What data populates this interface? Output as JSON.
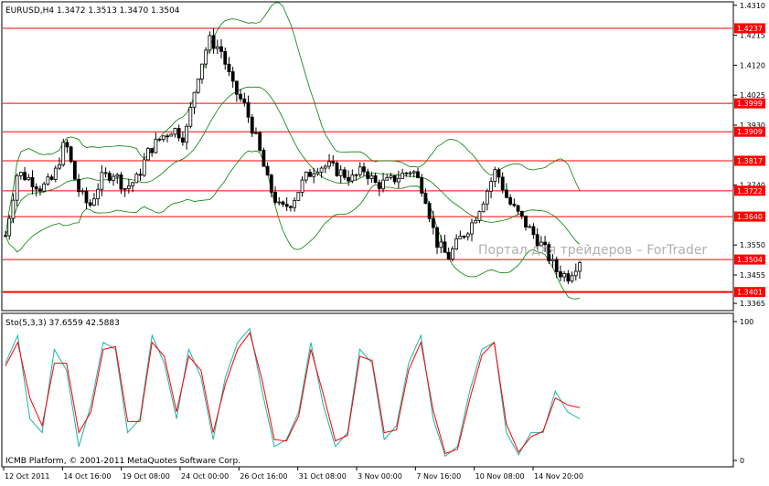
{
  "header": {
    "symbol_info": "EURUSD,H4  1.3472 1.3513 1.3470 1.3504",
    "indicator_info": "Sto(5,3,3) 37.6559 42.5883",
    "copyright": "ICMB Platform, © 2001-2011 MetaQuotes Software Corp.",
    "watermark": "Портал для трейдеров – ForTrader"
  },
  "colors": {
    "background": "#ffffff",
    "frame": "#000000",
    "level_lines": "#ff0000",
    "bollinger": "#008000",
    "candle_bull": "#ffffff",
    "candle_bear": "#000000",
    "stoch_main": "#20b2aa",
    "stoch_signal": "#ff0000",
    "watermark": "#b0b0b0"
  },
  "chart_data": [
    {
      "type": "line",
      "title": "EURUSD,H4",
      "xlabel": "",
      "ylabel": "",
      "ylim": [
        1.3345,
        1.4318
      ],
      "x_ticks": [
        "12 Oct 2011",
        "14 Oct 16:00",
        "19 Oct 08:00",
        "24 Oct 00:00",
        "26 Oct 16:00",
        "31 Oct 08:00",
        "3 Nov 00:00",
        "7 Nov 16:00",
        "10 Nov 08:00",
        "14 Nov 20:00"
      ],
      "y_ticks": [
        1.3365,
        1.3455,
        1.355,
        1.374,
        1.393,
        1.4025,
        1.412,
        1.4215,
        1.431
      ],
      "levels": [
        1.4237,
        1.3999,
        1.3909,
        1.3817,
        1.3722,
        1.364,
        1.3504,
        1.3401
      ],
      "last_close": 1.3504,
      "close_path": [
        1.358,
        1.378,
        1.376,
        1.373,
        1.376,
        1.388,
        1.373,
        1.367,
        1.376,
        1.378,
        1.373,
        1.376,
        1.385,
        1.389,
        1.392,
        1.389,
        1.408,
        1.42,
        1.417,
        1.405,
        1.399,
        1.388,
        1.374,
        1.366,
        1.369,
        1.376,
        1.38,
        1.38,
        1.378,
        1.376,
        1.379,
        1.374,
        1.375,
        1.377,
        1.379,
        1.372,
        1.356,
        1.351,
        1.357,
        1.362,
        1.37,
        1.379,
        1.369,
        1.364,
        1.359,
        1.354,
        1.347,
        1.345,
        1.3504
      ]
    },
    {
      "type": "line",
      "title": "Sto(5,3,3)",
      "xlabel": "",
      "ylabel": "",
      "ylim": [
        0,
        100
      ],
      "y_ticks": [
        0,
        100
      ],
      "series": [
        {
          "name": "",
          "values": [
            70,
            90,
            30,
            20,
            80,
            65,
            10,
            40,
            85,
            80,
            20,
            30,
            90,
            70,
            30,
            80,
            60,
            15,
            60,
            85,
            95,
            50,
            10,
            15,
            35,
            85,
            40,
            10,
            20,
            80,
            70,
            15,
            25,
            70,
            90,
            30,
            3,
            10,
            50,
            80,
            85,
            20,
            4,
            20,
            20,
            50,
            35,
            30
          ]
        },
        {
          "name": "",
          "values": [
            68,
            85,
            45,
            25,
            70,
            70,
            20,
            35,
            80,
            82,
            28,
            28,
            85,
            75,
            35,
            75,
            65,
            20,
            55,
            80,
            92,
            58,
            15,
            14,
            32,
            80,
            48,
            14,
            18,
            75,
            72,
            20,
            22,
            65,
            85,
            36,
            5,
            8,
            44,
            76,
            85,
            26,
            6,
            17,
            21,
            45,
            40,
            38
          ]
        }
      ]
    }
  ]
}
